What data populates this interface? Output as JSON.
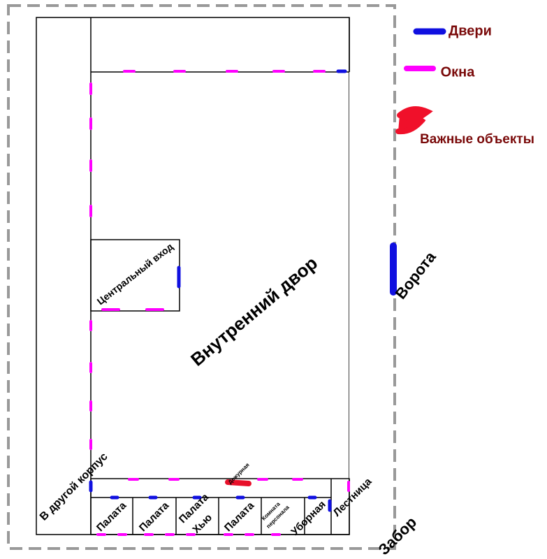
{
  "legend": {
    "items": [
      {
        "label": "Двери"
      },
      {
        "label": "Окна"
      },
      {
        "label": "Важные объекты"
      }
    ]
  },
  "labels": {
    "central_entrance": "Центральный вход",
    "courtyard": "Внутренний двор",
    "gate": "Ворота",
    "other_building": "В другой корпус",
    "duty_room": "Дежурная",
    "stairs": "Лестница",
    "fence": "Забор"
  },
  "rooms": [
    {
      "label": "Палата"
    },
    {
      "label": "Палата"
    },
    {
      "label": "Палата",
      "note": "Хью"
    },
    {
      "label": "Палата"
    },
    {
      "lines": [
        "Комната",
        "персонала"
      ]
    },
    {
      "label": "Уборная"
    }
  ]
}
